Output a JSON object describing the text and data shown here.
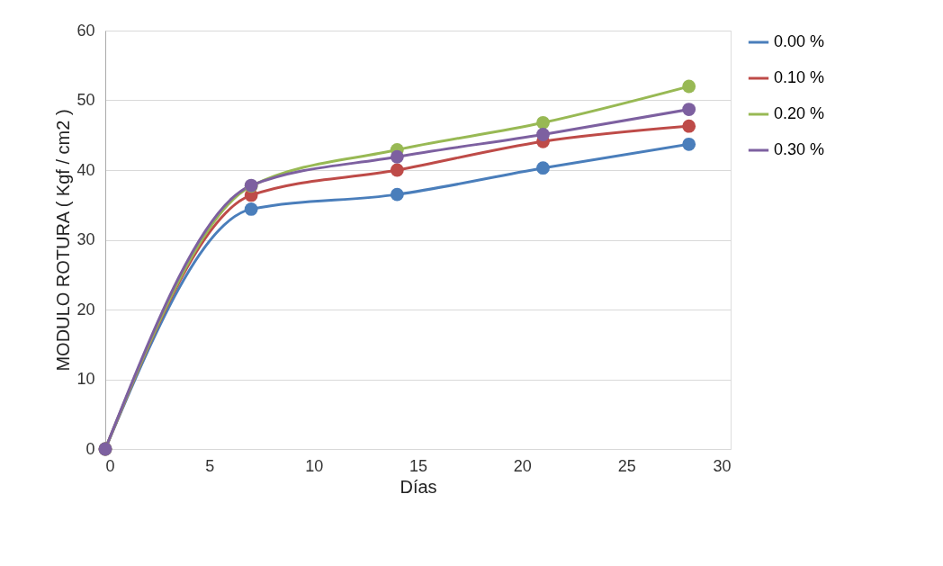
{
  "chart_data": {
    "type": "line",
    "xlabel": "Días",
    "ylabel": "MODULO ROTURA  ( Kgf / cm2 )",
    "x": [
      0,
      7,
      14,
      21,
      28
    ],
    "series": [
      {
        "name": "0.00 %",
        "color": "#4a7ebb",
        "values": [
          0,
          34.4,
          36.5,
          40.3,
          43.7
        ]
      },
      {
        "name": "0.10 %",
        "color": "#be4b48",
        "values": [
          0,
          36.4,
          40.0,
          44.1,
          46.3
        ]
      },
      {
        "name": "0.20 %",
        "color": "#98b954",
        "values": [
          0,
          37.7,
          42.9,
          46.8,
          52.0
        ]
      },
      {
        "name": "0.30 %",
        "color": "#7d60a0",
        "values": [
          0,
          37.8,
          41.9,
          45.1,
          48.7
        ]
      }
    ],
    "xlim": [
      0,
      30
    ],
    "xticks": [
      0,
      5,
      10,
      15,
      20,
      25,
      30
    ],
    "ylim": [
      0,
      60
    ],
    "yticks": [
      0,
      10,
      20,
      30,
      40,
      50,
      60
    ],
    "grid": "y",
    "legend": "right",
    "marker": "circle",
    "line_style": "solid"
  }
}
